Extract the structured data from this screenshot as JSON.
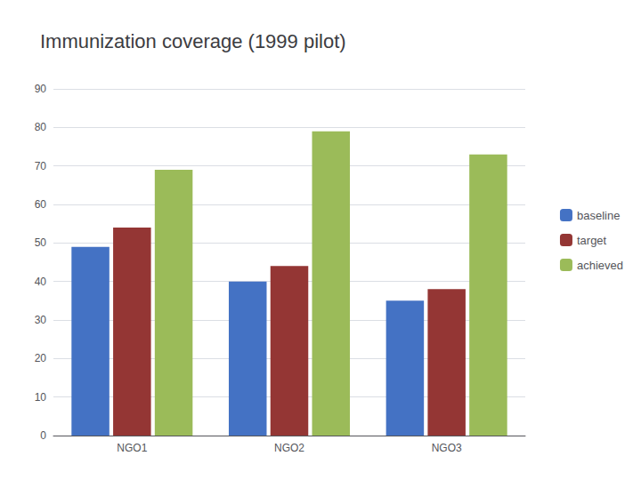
{
  "chart_data": {
    "type": "bar",
    "title": "Immunization coverage (1999 pilot)",
    "categories": [
      "NGO1",
      "NGO2",
      "NGO3"
    ],
    "series": [
      {
        "name": "baseline",
        "color": "#4472C4",
        "values": [
          49,
          40,
          35
        ]
      },
      {
        "name": "target",
        "color": "#943634",
        "values": [
          54,
          44,
          38
        ]
      },
      {
        "name": "achieved",
        "color": "#9BBB59",
        "values": [
          69,
          79,
          73
        ]
      }
    ],
    "ylim": [
      0,
      90
    ],
    "yticks": [
      0,
      10,
      20,
      30,
      40,
      50,
      60,
      70,
      80,
      90
    ],
    "grid": true,
    "legend": "right"
  }
}
